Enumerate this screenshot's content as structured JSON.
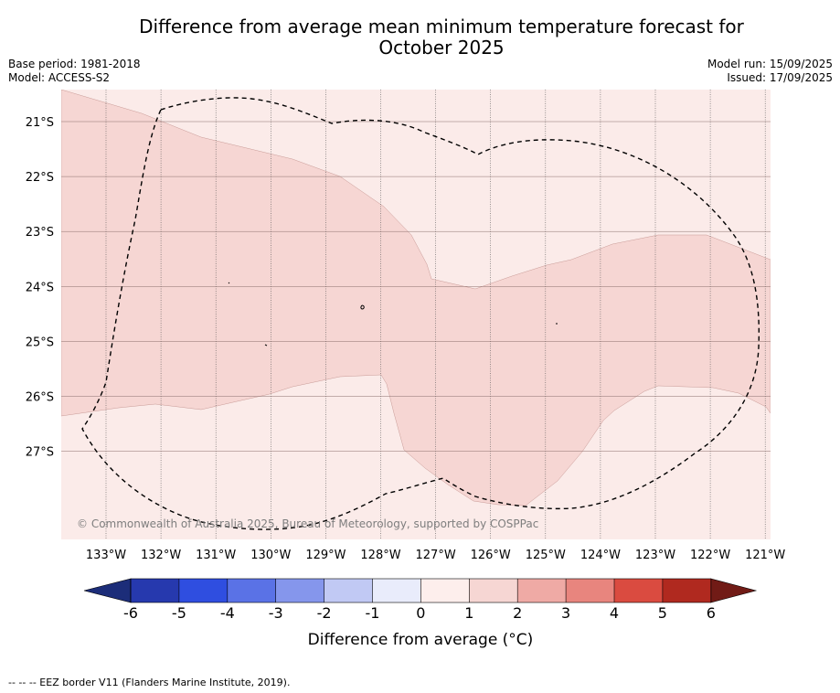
{
  "title_line1": "Difference from average mean minimum temperature forecast for",
  "title_line2": "October 2025",
  "base_period": "Base period: 1981-2018",
  "model": "Model: ACCESS-S2",
  "model_run": "Model run: 15/09/2025",
  "issued": "Issued: 17/09/2025",
  "copyright": "© Commonwealth of Australia 2025, Bureau of Meteorology, supported by COSPPac",
  "footnote": "--  --  -- EEZ border V11 (Flanders Marine Institute, 2019).",
  "map": {
    "lon_ticks": [
      "133°W",
      "132°W",
      "131°W",
      "130°W",
      "129°W",
      "128°W",
      "127°W",
      "126°W",
      "125°W",
      "124°W",
      "123°W",
      "122°W",
      "121°W"
    ],
    "lat_ticks": [
      "21°S",
      "22°S",
      "23°S",
      "24°S",
      "25°S",
      "26°S",
      "27°S"
    ],
    "anomaly_fill_color": "#f6d6d3",
    "background_fill_color": "#fbebe9",
    "eez_border_style": "dashed"
  },
  "colorbar": {
    "label": "Difference from average (°C)",
    "ticks": [
      "-6",
      "-5",
      "-4",
      "-3",
      "-2",
      "-1",
      "0",
      "1",
      "2",
      "3",
      "4",
      "5",
      "6"
    ],
    "colors": [
      "#1c2d79",
      "#2639ae",
      "#2f4ee0",
      "#5a72e6",
      "#8596ec",
      "#c1c9f4",
      "#e9ecfb",
      "#fdeeec",
      "#f6d6d3",
      "#efaaa5",
      "#e8857e",
      "#da4b40",
      "#b0291f",
      "#711b16"
    ]
  }
}
